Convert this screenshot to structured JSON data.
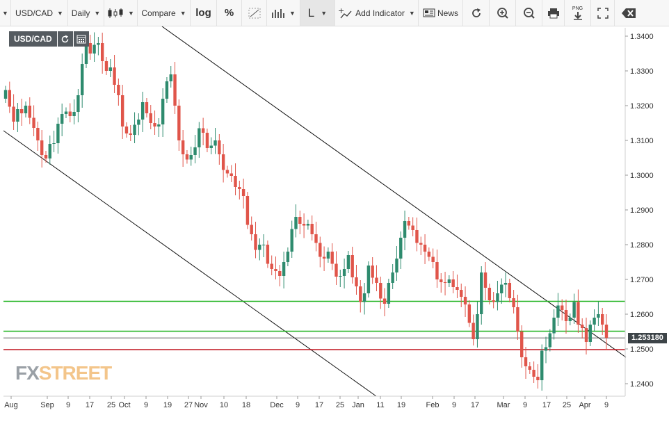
{
  "toolbar": {
    "symbol": "USD/CAD",
    "interval": "Daily",
    "compare": "Compare",
    "log": "log",
    "percent": "%",
    "cursor": "L",
    "add_indicator": "Add Indicator",
    "news": "News",
    "png": "PNG"
  },
  "chart": {
    "symbol_label": "USD/CAD",
    "last_price": "1.253180",
    "y_ticks": [
      "1.3400",
      "1.3300",
      "1.3200",
      "1.3100",
      "1.3000",
      "1.2900",
      "1.2800",
      "1.2700",
      "1.2600",
      "1.2500",
      "1.2400"
    ],
    "x_ticks": [
      "Aug",
      "Sep",
      "9",
      "17",
      "25",
      "Oct",
      "9",
      "19",
      "27",
      "Nov",
      "10",
      "18",
      "Dec",
      "9",
      "17",
      "25",
      "Jan",
      "11",
      "19",
      "Feb",
      "9",
      "17",
      "Mar",
      "9",
      "17",
      "25",
      "Apr",
      "9"
    ],
    "colors": {
      "up": "#2e8b6e",
      "down": "#e0554a",
      "green_line": "#1fb31f",
      "red_line": "#c0141e"
    }
  },
  "logo": {
    "part1": "FX",
    "part2": "STREET"
  },
  "chart_data": {
    "type": "candlestick",
    "y_range": [
      1.236,
      1.343
    ],
    "horizontal_levels": [
      {
        "color": "green",
        "value": 1.2637
      },
      {
        "color": "green",
        "value": 1.2551
      },
      {
        "color": "red",
        "value": 1.2498
      }
    ],
    "last": 1.25318,
    "closes": [
      1.3245,
      1.3197,
      1.3154,
      1.319,
      1.3178,
      1.32,
      1.3165,
      1.3136,
      1.31,
      1.3058,
      1.3048,
      1.309,
      1.3092,
      1.3148,
      1.3176,
      1.3183,
      1.317,
      1.3182,
      1.323,
      1.332,
      1.338,
      1.335,
      1.3375,
      1.338,
      1.3328,
      1.33,
      1.331,
      1.326,
      1.323,
      1.314,
      1.312,
      1.3116,
      1.3145,
      1.316,
      1.321,
      1.3178,
      1.315,
      1.314,
      1.3146,
      1.322,
      1.327,
      1.329,
      1.32,
      1.31,
      1.306,
      1.3045,
      1.3058,
      1.308,
      1.3135,
      1.3122,
      1.3078,
      1.3085,
      1.31,
      1.306,
      1.3015,
      1.3005,
      1.2998,
      1.2966,
      1.296,
      1.294,
      1.2857,
      1.283,
      1.2785,
      1.28,
      1.28,
      1.2745,
      1.273,
      1.2724,
      1.271,
      1.275,
      1.278,
      1.2845,
      1.288,
      1.286,
      1.2855,
      1.286,
      1.283,
      1.2805,
      1.2765,
      1.276,
      1.278,
      1.2745,
      1.2708,
      1.271,
      1.273,
      1.277,
      1.2706,
      1.268,
      1.2635,
      1.266,
      1.274,
      1.2705,
      1.269,
      1.2645,
      1.263,
      1.269,
      1.272,
      1.276,
      1.282,
      1.2868,
      1.2855,
      1.2842,
      1.2805,
      1.28,
      1.278,
      1.2765,
      1.275,
      1.27,
      1.2692,
      1.269,
      1.27,
      1.2678,
      1.267,
      1.265,
      1.2628,
      1.2575,
      1.2528,
      1.26,
      1.272,
      1.2676,
      1.264,
      1.2635,
      1.266,
      1.2685,
      1.269,
      1.2646,
      1.262,
      1.255,
      1.2476,
      1.245,
      1.244,
      1.242,
      1.241,
      1.2495,
      1.2505,
      1.2545,
      1.259,
      1.2625,
      1.2612,
      1.258,
      1.259,
      1.2635,
      1.257,
      1.256,
      1.252,
      1.257,
      1.259,
      1.26,
      1.257,
      1.2532
    ]
  }
}
